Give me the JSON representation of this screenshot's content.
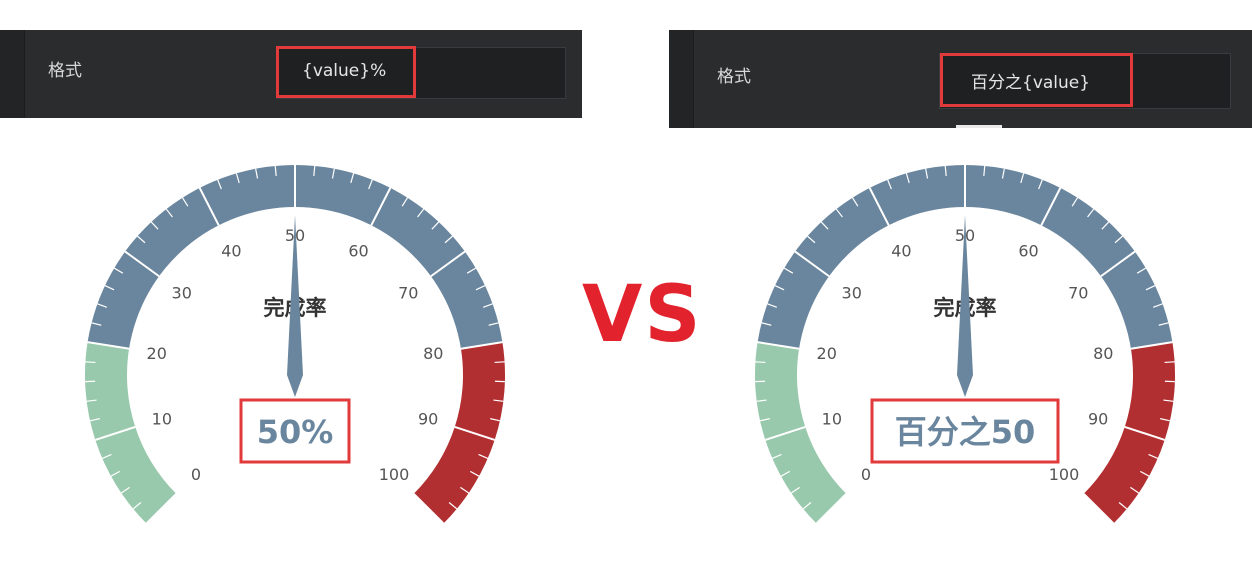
{
  "panels": [
    {
      "label": "格式",
      "value": "{value}%"
    },
    {
      "label": "格式",
      "value": "百分之{value}"
    }
  ],
  "vs_label": "VS",
  "chart_data": [
    {
      "type": "gauge",
      "title": "完成率",
      "value": 50,
      "detail": "50%",
      "min": 0,
      "max": 100,
      "ticks": [
        "0",
        "10",
        "20",
        "30",
        "40",
        "50",
        "60",
        "70",
        "80",
        "90",
        "100"
      ],
      "bands": [
        {
          "to": 0.2,
          "color": "#98c9ac"
        },
        {
          "to": 0.8,
          "color": "#6a869e"
        },
        {
          "to": 1.0,
          "color": "#b22f31"
        }
      ],
      "pointer_color": "#6a869e"
    },
    {
      "type": "gauge",
      "title": "完成率",
      "value": 50,
      "detail": "百分之50",
      "min": 0,
      "max": 100,
      "ticks": [
        "0",
        "10",
        "20",
        "30",
        "40",
        "50",
        "60",
        "70",
        "80",
        "90",
        "100"
      ],
      "bands": [
        {
          "to": 0.2,
          "color": "#98c9ac"
        },
        {
          "to": 0.8,
          "color": "#6a869e"
        },
        {
          "to": 1.0,
          "color": "#b22f31"
        }
      ],
      "pointer_color": "#6a869e"
    }
  ]
}
